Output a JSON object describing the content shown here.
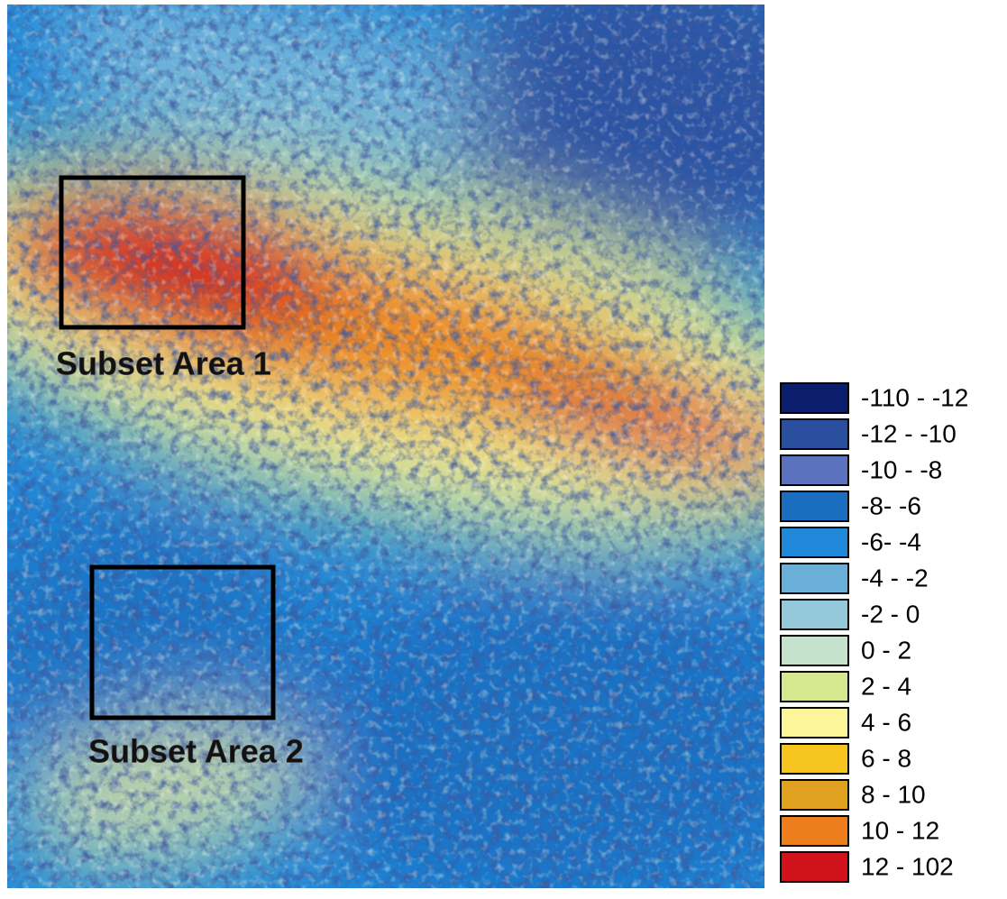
{
  "map": {
    "annotations": [
      "Subset Area 1",
      "Subset Area 2"
    ],
    "legend": [
      {
        "label": "-110 - -12",
        "color": "#0b1d6c"
      },
      {
        "label": "-12 - -10",
        "color": "#2b4f9f"
      },
      {
        "label": "-10 - -8",
        "color": "#5b73bf"
      },
      {
        "label": "-8- -6",
        "color": "#1b6dbf"
      },
      {
        "label": "-6- -4",
        "color": "#1f88d8"
      },
      {
        "label": "-4 - -2",
        "color": "#6aafd8"
      },
      {
        "label": "-2 - 0",
        "color": "#96c8dc"
      },
      {
        "label": "0 - 2",
        "color": "#c4e2cc"
      },
      {
        "label": "2 - 4",
        "color": "#d5e88f"
      },
      {
        "label": "4 - 6",
        "color": "#fdf59a"
      },
      {
        "label": "6 - 8",
        "color": "#f7c520"
      },
      {
        "label": "8 - 10",
        "color": "#e0a020"
      },
      {
        "label": "10 - 12",
        "color": "#ee7e1c"
      },
      {
        "label": "12 - 102",
        "color": "#d2121a"
      }
    ]
  }
}
